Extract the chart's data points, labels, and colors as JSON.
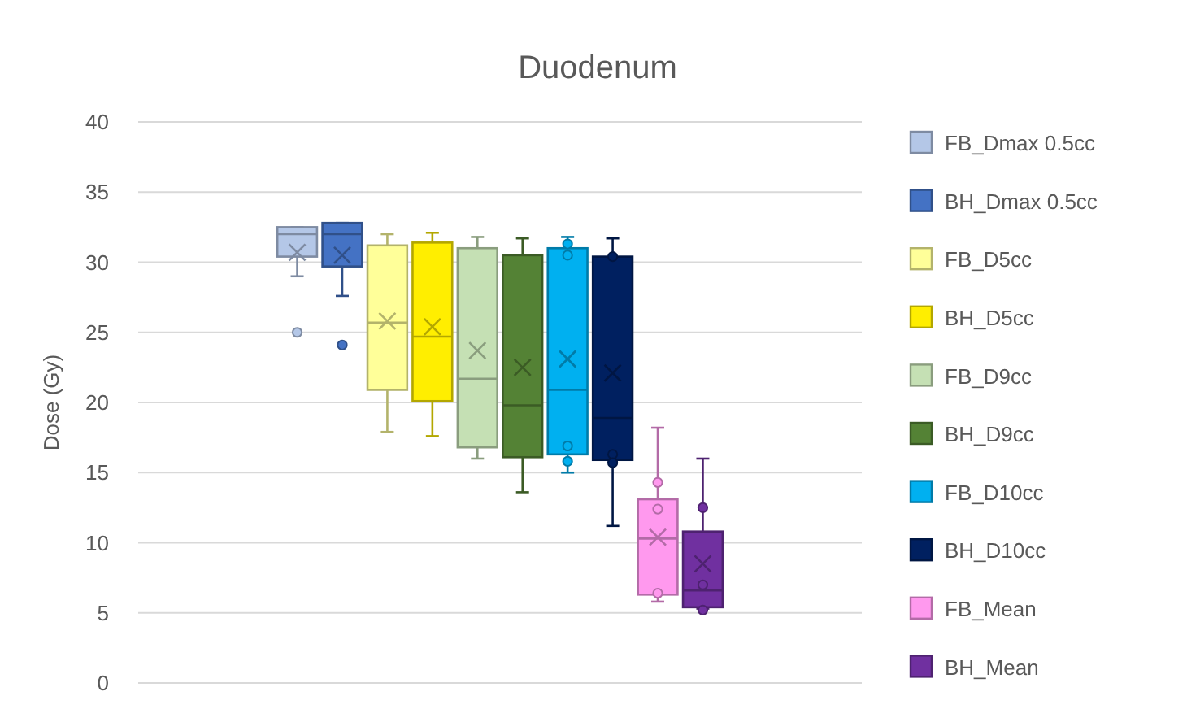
{
  "chart_data": {
    "type": "box",
    "title": "Duodenum",
    "ylabel": "Dose (Gy)",
    "categories": [
      null
    ],
    "ylim": [
      0,
      40
    ],
    "yticks": [
      0,
      5,
      10,
      15,
      20,
      25,
      30,
      35,
      40
    ],
    "grid": "y",
    "legend": "right",
    "series": [
      {
        "name": "FB_Dmax 0.5cc",
        "color": "#b4c7e7",
        "boxes": [
          {
            "low": 29.0,
            "q1": 30.4,
            "median": 32.0,
            "q3": 32.5,
            "high": 32.5,
            "mean": 30.7,
            "outliers": [
              25.0
            ]
          }
        ]
      },
      {
        "name": "BH_Dmax 0.5cc",
        "color": "#4472c4",
        "boxes": [
          {
            "low": 27.6,
            "q1": 29.7,
            "median": 32.0,
            "q3": 32.8,
            "high": 32.8,
            "mean": 30.5,
            "outliers": [
              24.1
            ]
          }
        ]
      },
      {
        "name": "FB_D5cc",
        "color": "#ffff99",
        "boxes": [
          {
            "low": 17.9,
            "q1": 20.9,
            "median": 25.7,
            "q3": 31.2,
            "high": 32.0,
            "mean": 25.8
          }
        ]
      },
      {
        "name": "BH_D5cc",
        "color": "#ffee00",
        "boxes": [
          {
            "low": 17.6,
            "q1": 20.1,
            "median": 24.7,
            "q3": 31.4,
            "high": 32.1,
            "mean": 25.4
          }
        ]
      },
      {
        "name": "FB_D9cc",
        "color": "#c5e0b4",
        "boxes": [
          {
            "low": 16.0,
            "q1": 16.8,
            "median": 21.7,
            "q3": 31.0,
            "high": 31.8,
            "mean": 23.7
          }
        ]
      },
      {
        "name": "BH_D9cc",
        "color": "#548235",
        "boxes": [
          {
            "low": 13.6,
            "q1": 16.1,
            "median": 19.8,
            "q3": 30.5,
            "high": 31.7,
            "mean": 22.5
          }
        ]
      },
      {
        "name": "FB_D10cc",
        "color": "#00b0f0",
        "boxes": [
          {
            "low": 15.0,
            "q1": 16.3,
            "median": 20.9,
            "q3": 31.0,
            "high": 31.8,
            "mean": 23.1,
            "outliers": [
              31.3,
              30.5,
              16.9,
              15.8
            ]
          }
        ]
      },
      {
        "name": "BH_D10cc",
        "color": "#002060",
        "boxes": [
          {
            "low": 11.2,
            "q1": 15.9,
            "median": 18.9,
            "q3": 30.4,
            "high": 31.7,
            "mean": 22.1,
            "outliers": [
              30.4,
              16.3,
              15.7
            ]
          }
        ]
      },
      {
        "name": "FB_Mean",
        "color": "#ff99ee",
        "boxes": [
          {
            "low": 5.8,
            "q1": 6.3,
            "median": 10.3,
            "q3": 13.1,
            "high": 18.2,
            "mean": 10.4,
            "outliers": [
              14.3,
              12.4,
              6.4
            ]
          }
        ]
      },
      {
        "name": "BH_Mean",
        "color": "#7030a0",
        "boxes": [
          {
            "low": 5.3,
            "q1": 5.4,
            "median": 6.6,
            "q3": 10.8,
            "high": 16.0,
            "mean": 8.5,
            "outliers": [
              12.5,
              7.0,
              5.2
            ]
          }
        ]
      }
    ]
  }
}
